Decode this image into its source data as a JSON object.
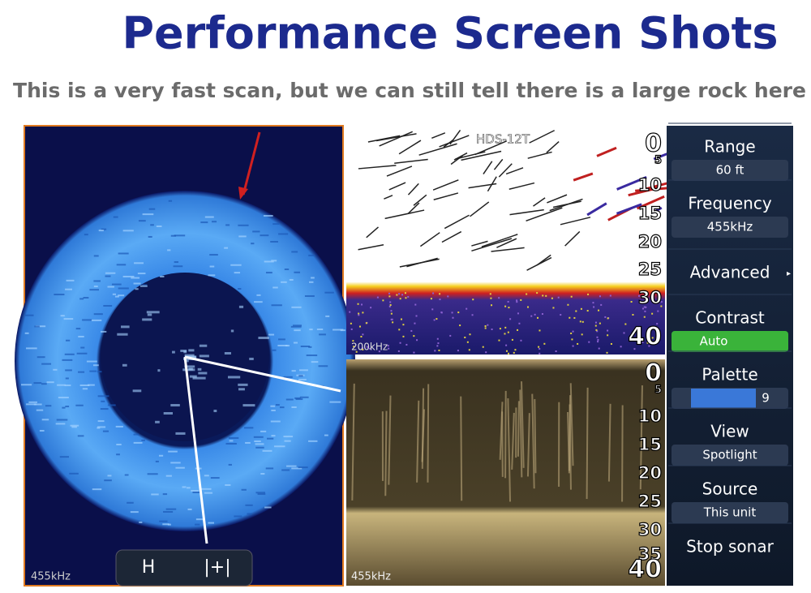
{
  "header": {
    "title": "Performance Screen Shots",
    "subtitle": "This is a very fast scan, but we can still tell there is a large rock here"
  },
  "left_panel": {
    "frequency": "455kHz"
  },
  "top_panel": {
    "model": "HDS-12T",
    "frequency": "200kHz",
    "depths": [
      0,
      5,
      10,
      15,
      20,
      25,
      30,
      40
    ]
  },
  "bottom_panel": {
    "frequency": "455kHz",
    "depths": [
      0,
      5,
      10,
      15,
      20,
      25,
      30,
      35,
      40
    ]
  },
  "menu": {
    "items": [
      {
        "label": "Range",
        "value": "60 ft"
      },
      {
        "label": "Frequency",
        "value": "455kHz"
      },
      {
        "label": "Advanced"
      },
      {
        "label": "Contrast",
        "value": "Auto"
      },
      {
        "label": "Palette",
        "value": "9"
      },
      {
        "label": "View",
        "value": "Spotlight"
      },
      {
        "label": "Source",
        "value": "This unit"
      },
      {
        "label": "Stop sonar"
      }
    ]
  }
}
